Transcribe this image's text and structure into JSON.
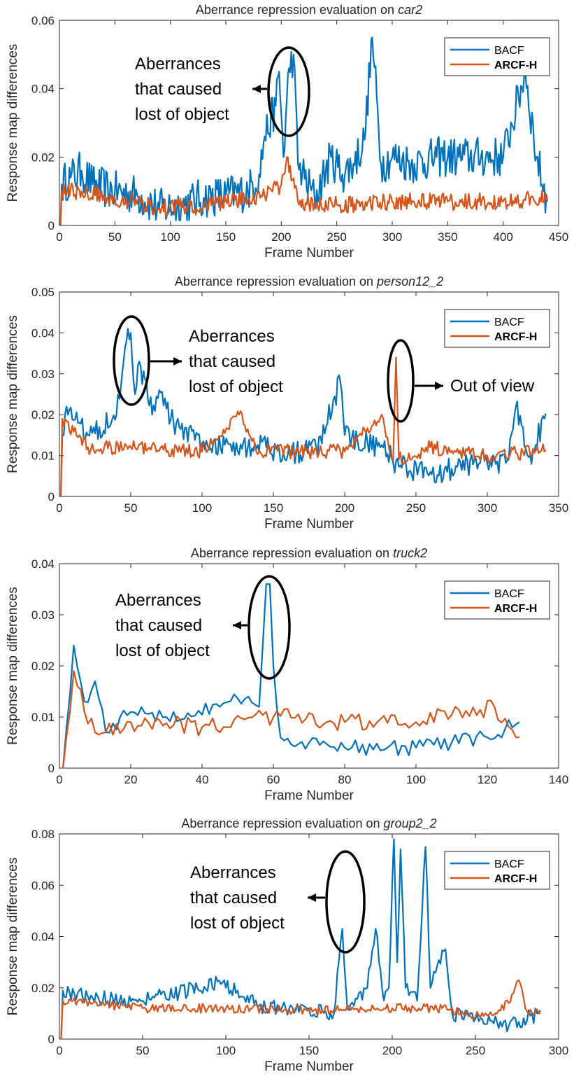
{
  "colors": {
    "bacf": "#0072BD",
    "arcf": "#D95319",
    "axis": "#262626"
  },
  "chart_data": [
    {
      "type": "line",
      "title_prefix": "Aberrance repression evaluation on ",
      "title_italic": "car2",
      "xlabel": "Frame Number",
      "ylabel": "Response map differences",
      "xlim": [
        0,
        450
      ],
      "ylim": [
        0,
        0.06
      ],
      "xticks": [
        0,
        50,
        100,
        150,
        200,
        250,
        300,
        350,
        400,
        450
      ],
      "yticks": [
        "0",
        "0.02",
        "0.04",
        "0.06"
      ],
      "ytick_values": [
        0,
        0.02,
        0.04,
        0.06
      ],
      "legend": [
        "BACF",
        "ARCF-H"
      ],
      "n_frames": 440,
      "series": [
        {
          "name": "BACF",
          "keypoints": [
            [
              1,
              0
            ],
            [
              2,
              0.012
            ],
            [
              10,
              0.014
            ],
            [
              20,
              0.016
            ],
            [
              30,
              0.012
            ],
            [
              50,
              0.01
            ],
            [
              70,
              0.009
            ],
            [
              90,
              0.005
            ],
            [
              110,
              0.006
            ],
            [
              130,
              0.008
            ],
            [
              150,
              0.009
            ],
            [
              170,
              0.01
            ],
            [
              180,
              0.015
            ],
            [
              185,
              0.026
            ],
            [
              195,
              0.035
            ],
            [
              198,
              0.045
            ],
            [
              202,
              0.02
            ],
            [
              207,
              0.046
            ],
            [
              211,
              0.05
            ],
            [
              215,
              0.018
            ],
            [
              230,
              0.008
            ],
            [
              245,
              0.02
            ],
            [
              255,
              0.015
            ],
            [
              265,
              0.018
            ],
            [
              275,
              0.025
            ],
            [
              282,
              0.055
            ],
            [
              290,
              0.018
            ],
            [
              300,
              0.02
            ],
            [
              320,
              0.018
            ],
            [
              340,
              0.02
            ],
            [
              360,
              0.02
            ],
            [
              380,
              0.02
            ],
            [
              400,
              0.02
            ],
            [
              420,
              0.045
            ],
            [
              430,
              0.02
            ],
            [
              440,
              0.007
            ]
          ],
          "amp": 0.006
        },
        {
          "name": "ARCF-H",
          "keypoints": [
            [
              1,
              0
            ],
            [
              2,
              0.01
            ],
            [
              20,
              0.01
            ],
            [
              50,
              0.008
            ],
            [
              90,
              0.005
            ],
            [
              130,
              0.006
            ],
            [
              170,
              0.008
            ],
            [
              185,
              0.009
            ],
            [
              200,
              0.012
            ],
            [
              205,
              0.02
            ],
            [
              215,
              0.007
            ],
            [
              250,
              0.006
            ],
            [
              300,
              0.007
            ],
            [
              350,
              0.007
            ],
            [
              400,
              0.007
            ],
            [
              440,
              0.008
            ]
          ],
          "amp": 0.0025
        }
      ],
      "annotations": [
        {
          "lines": [
            "Aberrances",
            "that caused",
            "lost of object"
          ],
          "frame": 207
        }
      ]
    },
    {
      "type": "line",
      "title_prefix": "Aberrance repression evaluation on ",
      "title_italic": "person12_2",
      "xlabel": "Frame Number",
      "ylabel": "Response map differences",
      "xlim": [
        0,
        350
      ],
      "ylim": [
        0,
        0.05
      ],
      "xticks": [
        0,
        50,
        100,
        150,
        200,
        250,
        300,
        350
      ],
      "yticks": [
        "0",
        "0.01",
        "0.02",
        "0.03",
        "0.04",
        "0.05"
      ],
      "ytick_values": [
        0,
        0.01,
        0.02,
        0.03,
        0.04,
        0.05
      ],
      "legend": [
        "BACF",
        "ARCF-H"
      ],
      "n_frames": 341,
      "series": [
        {
          "name": "BACF",
          "keypoints": [
            [
              1,
              0
            ],
            [
              2,
              0.015
            ],
            [
              5,
              0.022
            ],
            [
              20,
              0.015
            ],
            [
              40,
              0.02
            ],
            [
              47,
              0.038
            ],
            [
              50,
              0.04
            ],
            [
              53,
              0.025
            ],
            [
              56,
              0.033
            ],
            [
              65,
              0.02
            ],
            [
              70,
              0.026
            ],
            [
              80,
              0.018
            ],
            [
              100,
              0.013
            ],
            [
              145,
              0.012
            ],
            [
              160,
              0.01
            ],
            [
              180,
              0.012
            ],
            [
              197,
              0.028
            ],
            [
              200,
              0.015
            ],
            [
              225,
              0.012
            ],
            [
              240,
              0.007
            ],
            [
              260,
              0.006
            ],
            [
              300,
              0.008
            ],
            [
              315,
              0.009
            ],
            [
              320,
              0.022
            ],
            [
              330,
              0.01
            ],
            [
              340,
              0.019
            ]
          ],
          "amp": 0.003
        },
        {
          "name": "ARCF-H",
          "keypoints": [
            [
              1,
              0
            ],
            [
              2,
              0.019
            ],
            [
              20,
              0.012
            ],
            [
              50,
              0.012
            ],
            [
              100,
              0.011
            ],
            [
              126,
              0.02
            ],
            [
              140,
              0.011
            ],
            [
              200,
              0.011
            ],
            [
              226,
              0.02
            ],
            [
              234,
              0.009
            ],
            [
              236,
              0.034
            ],
            [
              238,
              0.009
            ],
            [
              260,
              0.012
            ],
            [
              300,
              0.01
            ],
            [
              340,
              0.011
            ]
          ],
          "amp": 0.0018
        }
      ],
      "annotations": [
        {
          "lines": [
            "Aberrances",
            "that caused",
            "lost of object"
          ],
          "frame": 50
        },
        {
          "lines": [
            "Out of view"
          ],
          "frame": 236
        }
      ]
    },
    {
      "type": "line",
      "title_prefix": "Aberrance repression evaluation on ",
      "title_italic": "truck2",
      "xlabel": "Frame Number",
      "ylabel": "Response map differences",
      "xlim": [
        0,
        140
      ],
      "ylim": [
        0,
        0.04
      ],
      "xticks": [
        0,
        20,
        40,
        60,
        80,
        100,
        120,
        140
      ],
      "yticks": [
        "0",
        "0.01",
        "0.02",
        "0.03",
        "0.04"
      ],
      "ytick_values": [
        0,
        0.01,
        0.02,
        0.03,
        0.04
      ],
      "legend": [
        "BACF",
        "ARCF-H"
      ],
      "n_frames": 129,
      "series": [
        {
          "name": "BACF",
          "keypoints": [
            [
              1,
              0
            ],
            [
              4,
              0.024
            ],
            [
              7,
              0.013
            ],
            [
              10,
              0.017
            ],
            [
              13,
              0.007
            ],
            [
              20,
              0.011
            ],
            [
              30,
              0.01
            ],
            [
              45,
              0.012
            ],
            [
              53,
              0.014
            ],
            [
              56,
              0.012
            ],
            [
              58,
              0.036
            ],
            [
              59,
              0.036
            ],
            [
              60,
              0.02
            ],
            [
              62,
              0.006
            ],
            [
              70,
              0.005
            ],
            [
              80,
              0.004
            ],
            [
              100,
              0.004
            ],
            [
              110,
              0.005
            ],
            [
              120,
              0.006
            ],
            [
              129,
              0.009
            ]
          ],
          "amp": 0.0015
        },
        {
          "name": "ARCF-H",
          "keypoints": [
            [
              1,
              0
            ],
            [
              4,
              0.019
            ],
            [
              7,
              0.011
            ],
            [
              10,
              0.007
            ],
            [
              20,
              0.009
            ],
            [
              40,
              0.008
            ],
            [
              60,
              0.01
            ],
            [
              80,
              0.009
            ],
            [
              100,
              0.009
            ],
            [
              122,
              0.012
            ],
            [
              129,
              0.006
            ]
          ],
          "amp": 0.0018
        }
      ],
      "annotations": [
        {
          "lines": [
            "Aberrances",
            "that caused",
            "lost of object"
          ],
          "frame": 58
        }
      ]
    },
    {
      "type": "line",
      "title_prefix": "Aberrance repression evaluation on ",
      "title_italic": "group2_2",
      "xlabel": "Frame Number",
      "ylabel": "Response map differences",
      "xlim": [
        0,
        300
      ],
      "ylim": [
        0,
        0.08
      ],
      "xticks": [
        0,
        50,
        100,
        150,
        200,
        250,
        300
      ],
      "yticks": [
        "0",
        "0.02",
        "0.04",
        "0.06",
        "0.08"
      ],
      "ytick_values": [
        0,
        0.02,
        0.04,
        0.06,
        0.08
      ],
      "legend": [
        "BACF",
        "ARCF-H"
      ],
      "n_frames": 289,
      "series": [
        {
          "name": "BACF",
          "keypoints": [
            [
              1,
              0
            ],
            [
              2,
              0.019
            ],
            [
              20,
              0.016
            ],
            [
              50,
              0.015
            ],
            [
              98,
              0.022
            ],
            [
              120,
              0.013
            ],
            [
              150,
              0.012
            ],
            [
              165,
              0.01
            ],
            [
              170,
              0.043
            ],
            [
              173,
              0.012
            ],
            [
              185,
              0.02
            ],
            [
              190,
              0.043
            ],
            [
              195,
              0.015
            ],
            [
              198,
              0.02
            ],
            [
              201,
              0.078
            ],
            [
              203,
              0.03
            ],
            [
              205,
              0.074
            ],
            [
              208,
              0.02
            ],
            [
              215,
              0.015
            ],
            [
              220,
              0.075
            ],
            [
              223,
              0.02
            ],
            [
              232,
              0.035
            ],
            [
              236,
              0.01
            ],
            [
              250,
              0.008
            ],
            [
              270,
              0.005
            ],
            [
              288,
              0.01
            ]
          ],
          "amp": 0.003
        },
        {
          "name": "ARCF-H",
          "keypoints": [
            [
              1,
              0
            ],
            [
              2,
              0.015
            ],
            [
              50,
              0.012
            ],
            [
              100,
              0.012
            ],
            [
              150,
              0.011
            ],
            [
              200,
              0.012
            ],
            [
              230,
              0.012
            ],
            [
              255,
              0.009
            ],
            [
              270,
              0.014
            ],
            [
              276,
              0.023
            ],
            [
              280,
              0.012
            ],
            [
              288,
              0.01
            ]
          ],
          "amp": 0.0018
        }
      ],
      "annotations": [
        {
          "lines": [
            "Aberrances",
            "that caused",
            "lost of object"
          ],
          "frame": 170
        }
      ]
    }
  ]
}
